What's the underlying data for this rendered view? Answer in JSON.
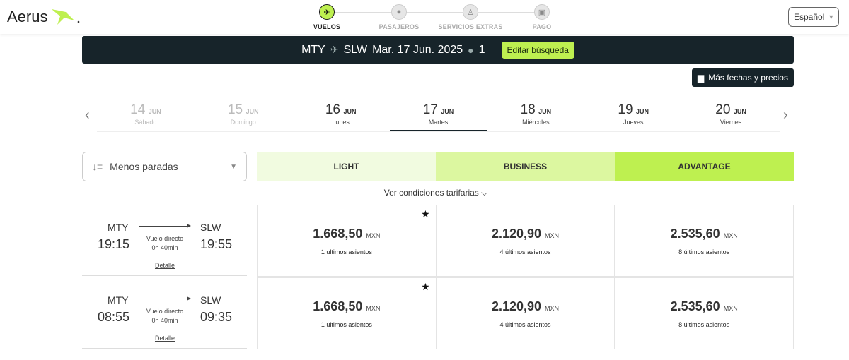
{
  "header": {
    "logo": "Aerus",
    "language": "Español",
    "steps": [
      {
        "label": "VUELOS",
        "icon": "plane-icon",
        "active": true
      },
      {
        "label": "PASAJEROS",
        "icon": "person-icon"
      },
      {
        "label": "SERVICIOS EXTRAS",
        "icon": "seat-icon"
      },
      {
        "label": "PAGO",
        "icon": "money-icon"
      }
    ]
  },
  "search": {
    "origin": "MTY",
    "destination": "SLW",
    "date": "Mar. 17 Jun. 2025",
    "passengers": "1",
    "edit_label": "Editar búsqueda"
  },
  "more_dates_label": "Más fechas y precios",
  "dates": [
    {
      "day": "14",
      "month": "JUN",
      "weekday": "Sábado",
      "state": "past"
    },
    {
      "day": "15",
      "month": "JUN",
      "weekday": "Domingo",
      "state": "past"
    },
    {
      "day": "16",
      "month": "JUN",
      "weekday": "Lunes",
      "state": "future"
    },
    {
      "day": "17",
      "month": "JUN",
      "weekday": "Martes",
      "state": "active"
    },
    {
      "day": "18",
      "month": "JUN",
      "weekday": "Miércoles",
      "state": "future"
    },
    {
      "day": "19",
      "month": "JUN",
      "weekday": "Jueves",
      "state": "future"
    },
    {
      "day": "20",
      "month": "JUN",
      "weekday": "Viernes",
      "state": "future"
    }
  ],
  "sort": {
    "selected": "Menos paradas"
  },
  "fares": [
    {
      "label": "LIGHT",
      "color": "#f1fbe0"
    },
    {
      "label": "BUSINESS",
      "color": "#dcf7a0"
    },
    {
      "label": "ADVANTAGE",
      "color": "#bef050"
    }
  ],
  "conditions_label": "Ver condiciones tarifarias",
  "flights": [
    {
      "origin": "MTY",
      "destination": "SLW",
      "depart": "19:15",
      "arrive": "19:55",
      "type": "Vuelo directo",
      "duration": "0h 40min",
      "detail": "Detalle",
      "prices": [
        {
          "amount": "1.668,50",
          "currency": "MXN",
          "seats": "1 ultimos asientos",
          "starred": true
        },
        {
          "amount": "2.120,90",
          "currency": "MXN",
          "seats": "4 últimos asientos"
        },
        {
          "amount": "2.535,60",
          "currency": "MXN",
          "seats": "8 últimos asientos"
        }
      ]
    },
    {
      "origin": "MTY",
      "destination": "SLW",
      "depart": "08:55",
      "arrive": "09:35",
      "type": "Vuelo directo",
      "duration": "0h 40min",
      "detail": "Detalle",
      "prices": [
        {
          "amount": "1.668,50",
          "currency": "MXN",
          "seats": "1 ultimos asientos",
          "starred": true
        },
        {
          "amount": "2.120,90",
          "currency": "MXN",
          "seats": "4 últimos asientos"
        },
        {
          "amount": "2.535,60",
          "currency": "MXN",
          "seats": "8 últimos asientos"
        }
      ]
    }
  ]
}
